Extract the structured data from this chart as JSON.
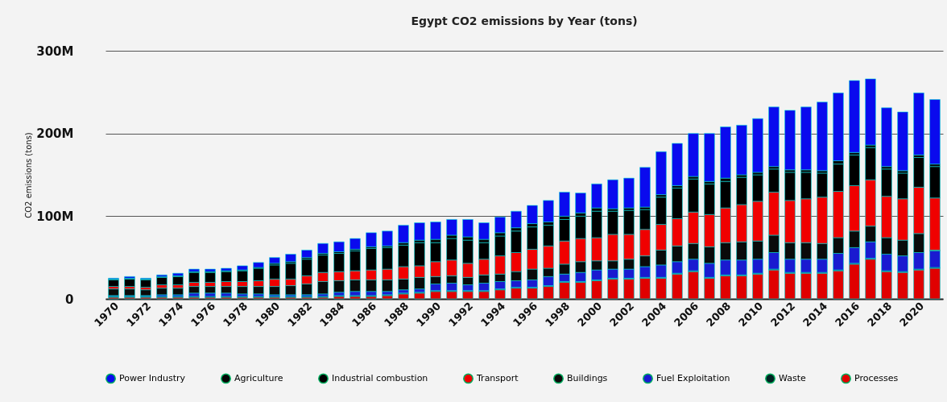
{
  "chart_data": {
    "type": "bar",
    "title": "Egypt CO2 emissions by Year (tons)",
    "ylabel": "CO2 emissions (tons)",
    "categories": [
      "1970",
      null,
      "1972",
      null,
      "1974",
      null,
      "1976",
      null,
      "1978",
      null,
      "1980",
      null,
      "1982",
      null,
      "1984",
      null,
      "1986",
      null,
      "1988",
      null,
      "1990",
      null,
      "1992",
      null,
      "1994",
      null,
      "1996",
      null,
      "1998",
      null,
      "2000",
      null,
      "2002",
      null,
      "2004",
      null,
      "2006",
      null,
      "2008",
      null,
      "2010",
      null,
      "2012",
      null,
      "2014",
      null,
      "2016",
      null,
      "2018",
      null,
      "2020",
      null
    ],
    "stacked": true,
    "ylim": [
      0,
      300000000.0
    ],
    "yticks": [
      0,
      {
        "value": 100000000.0,
        "label": "100M"
      },
      {
        "value": 200000000.0,
        "label": "200M"
      },
      {
        "value": 300000000.0,
        "label": "300M"
      }
    ],
    "grid": "y",
    "legend": "bottom",
    "series": [
      {
        "name": "Processes",
        "color": "#e00000",
        "values": [
          2000000.0,
          2000000.0,
          2000000.0,
          2000000.0,
          2000000.0,
          2000000.0,
          2000000.0,
          2000000.0,
          2000000.0,
          2000000.0,
          2000000.0,
          2000000.0,
          2000000.0,
          2000000.0,
          3000000.0,
          3000000.0,
          3000000.0,
          4000000.0,
          6000000.0,
          7000000.0,
          9000000.0,
          9000000.0,
          9000000.0,
          9000000.0,
          11000000.0,
          13000000.0,
          13000000.0,
          15000000.0,
          20000000.0,
          20000000.0,
          22000000.0,
          24000000.0,
          24000000.0,
          25000000.0,
          25000000.0,
          30000000.0,
          33000000.0,
          25000000.0,
          28000000.0,
          28000000.0,
          30000000.0,
          35000000.0,
          31000000.0,
          31000000.0,
          31000000.0,
          34000000.0,
          42000000.0,
          48000000.0,
          33000000.0,
          32000000.0,
          35000000.0,
          37000000.0
        ]
      },
      {
        "name": "Waste",
        "color": "#002222",
        "values": [
          1000000.0,
          1000000.0,
          1000000.0,
          1000000.0,
          1000000.0,
          1000000.0,
          1000000.0,
          1000000.0,
          1000000.0,
          1000000.0,
          1000000.0,
          1000000.0,
          1000000.0,
          1000000.0,
          1000000.0,
          1000000.0,
          1000000.0,
          1000000.0,
          1000000.0,
          1000000.0,
          1000000.0,
          1000000.0,
          1000000.0,
          1000000.0,
          1000000.0,
          1000000.0,
          1000000.0,
          1000000.0,
          1000000.0,
          1000000.0,
          1000000.0,
          1000000.0,
          1000000.0,
          1000000.0,
          1000000.0,
          1000000.0,
          1000000.0,
          1000000.0,
          1000000.0,
          1000000.0,
          1000000.0,
          1000000.0,
          1000000.0,
          1000000.0,
          1000000.0,
          1000000.0,
          1000000.0,
          1000000.0,
          1000000.0,
          1000000.0,
          1000000.0,
          1000000.0
        ]
      },
      {
        "name": "Fuel Exploitation",
        "color": "#1a1ad0",
        "values": [
          1000000.0,
          1000000.0,
          1000000.0,
          2000000.0,
          2000000.0,
          4000000.0,
          4000000.0,
          4000000.0,
          3000000.0,
          3000000.0,
          2000000.0,
          2000000.0,
          2000000.0,
          3000000.0,
          4000000.0,
          5000000.0,
          5000000.0,
          4000000.0,
          4000000.0,
          4000000.0,
          8000000.0,
          9000000.0,
          7000000.0,
          9000000.0,
          9000000.0,
          8000000.0,
          9000000.0,
          11000000.0,
          9000000.0,
          11000000.0,
          12000000.0,
          11000000.0,
          11000000.0,
          13000000.0,
          15000000.0,
          14000000.0,
          14000000.0,
          17000000.0,
          18000000.0,
          18000000.0,
          17000000.0,
          20000000.0,
          16000000.0,
          16000000.0,
          16000000.0,
          20000000.0,
          19000000.0,
          20000000.0,
          20000000.0,
          19000000.0,
          20000000.0,
          20000000.0
        ]
      },
      {
        "name": "Buildings",
        "color": "#0a0a0a",
        "values": [
          8000000.0,
          8000000.0,
          7000000.0,
          8000000.0,
          8000000.0,
          8000000.0,
          8000000.0,
          8000000.0,
          9000000.0,
          9000000.0,
          10000000.0,
          11000000.0,
          13000000.0,
          15000000.0,
          14000000.0,
          14000000.0,
          14000000.0,
          14000000.0,
          13000000.0,
          14000000.0,
          9000000.0,
          9000000.0,
          9000000.0,
          10000000.0,
          9000000.0,
          11000000.0,
          13000000.0,
          10000000.0,
          12000000.0,
          13000000.0,
          11000000.0,
          10000000.0,
          12000000.0,
          13000000.0,
          18000000.0,
          19000000.0,
          19000000.0,
          20000000.0,
          21000000.0,
          22000000.0,
          22000000.0,
          21000000.0,
          20000000.0,
          20000000.0,
          19000000.0,
          19000000.0,
          20000000.0,
          19000000.0,
          20000000.0,
          19000000.0,
          23000000.0,
          1000000.0
        ]
      },
      {
        "name": "Transport",
        "color": "#f00000",
        "values": [
          3000000.0,
          3000000.0,
          3000000.0,
          4000000.0,
          4000000.0,
          5000000.0,
          5000000.0,
          6000000.0,
          6000000.0,
          7000000.0,
          9000000.0,
          8000000.0,
          10000000.0,
          11000000.0,
          11000000.0,
          11000000.0,
          12000000.0,
          13000000.0,
          15000000.0,
          14000000.0,
          18000000.0,
          19000000.0,
          17000000.0,
          19000000.0,
          22000000.0,
          23000000.0,
          24000000.0,
          27000000.0,
          28000000.0,
          28000000.0,
          28000000.0,
          32000000.0,
          30000000.0,
          32000000.0,
          31000000.0,
          33000000.0,
          38000000.0,
          39000000.0,
          42000000.0,
          45000000.0,
          48000000.0,
          52000000.0,
          51000000.0,
          53000000.0,
          56000000.0,
          56000000.0,
          55000000.0,
          56000000.0,
          50000000.0,
          50000000.0,
          56000000.0,
          63000000.0
        ]
      },
      {
        "name": "Industrial combustion",
        "color": "#000000",
        "values": [
          8000000.0,
          9000000.0,
          9000000.0,
          9000000.0,
          10000000.0,
          12000000.0,
          12000000.0,
          12000000.0,
          13000000.0,
          15000000.0,
          17000000.0,
          19000000.0,
          20000000.0,
          21000000.0,
          22000000.0,
          24000000.0,
          26000000.0,
          26000000.0,
          26000000.0,
          28000000.0,
          23000000.0,
          26000000.0,
          28000000.0,
          20000000.0,
          24000000.0,
          26000000.0,
          27000000.0,
          25000000.0,
          26000000.0,
          27000000.0,
          32000000.0,
          28000000.0,
          29000000.0,
          24000000.0,
          33000000.0,
          37000000.0,
          40000000.0,
          37000000.0,
          32000000.0,
          33000000.0,
          32000000.0,
          28000000.0,
          34000000.0,
          32000000.0,
          29000000.0,
          33000000.0,
          37000000.0,
          39000000.0,
          33000000.0,
          31000000.0,
          36000000.0,
          38000000.0
        ]
      },
      {
        "name": "Agriculture",
        "color": "#050505",
        "values": [
          1000000.0,
          1000000.0,
          1000000.0,
          1000000.0,
          1000000.0,
          1000000.0,
          1000000.0,
          1000000.0,
          1000000.0,
          1000000.0,
          2000000.0,
          2000000.0,
          2000000.0,
          2000000.0,
          2000000.0,
          2000000.0,
          2000000.0,
          2000000.0,
          3000000.0,
          3000000.0,
          4000000.0,
          4000000.0,
          4000000.0,
          4000000.0,
          4000000.0,
          4000000.0,
          4000000.0,
          4000000.0,
          4000000.0,
          4000000.0,
          4000000.0,
          3000000.0,
          3000000.0,
          3000000.0,
          3000000.0,
          3000000.0,
          3000000.0,
          3000000.0,
          4000000.0,
          3000000.0,
          3000000.0,
          3000000.0,
          3000000.0,
          3000000.0,
          3000000.0,
          4000000.0,
          3000000.0,
          3000000.0,
          3000000.0,
          3000000.0,
          3000000.0,
          3000000.0
        ]
      },
      {
        "name": "Power Industry",
        "color": "#0a0aee",
        "values": [
          1000000.0,
          2000000.0,
          1000000.0,
          2000000.0,
          3000000.0,
          3000000.0,
          3000000.0,
          3000000.0,
          5000000.0,
          6000000.0,
          7000000.0,
          9000000.0,
          9000000.0,
          12000000.0,
          12000000.0,
          13000000.0,
          17000000.0,
          18000000.0,
          21000000.0,
          21000000.0,
          21000000.0,
          19000000.0,
          21000000.0,
          20000000.0,
          19000000.0,
          20000000.0,
          22000000.0,
          26000000.0,
          29000000.0,
          24000000.0,
          29000000.0,
          35000000.0,
          36000000.0,
          48000000.0,
          52000000.0,
          51000000.0,
          52000000.0,
          58000000.0,
          62000000.0,
          60000000.0,
          65000000.0,
          72000000.0,
          72000000.0,
          76000000.0,
          83000000.0,
          82000000.0,
          87000000.0,
          80000000.0,
          71000000.0,
          71000000.0,
          75000000.0,
          78000000.0
        ]
      }
    ]
  }
}
